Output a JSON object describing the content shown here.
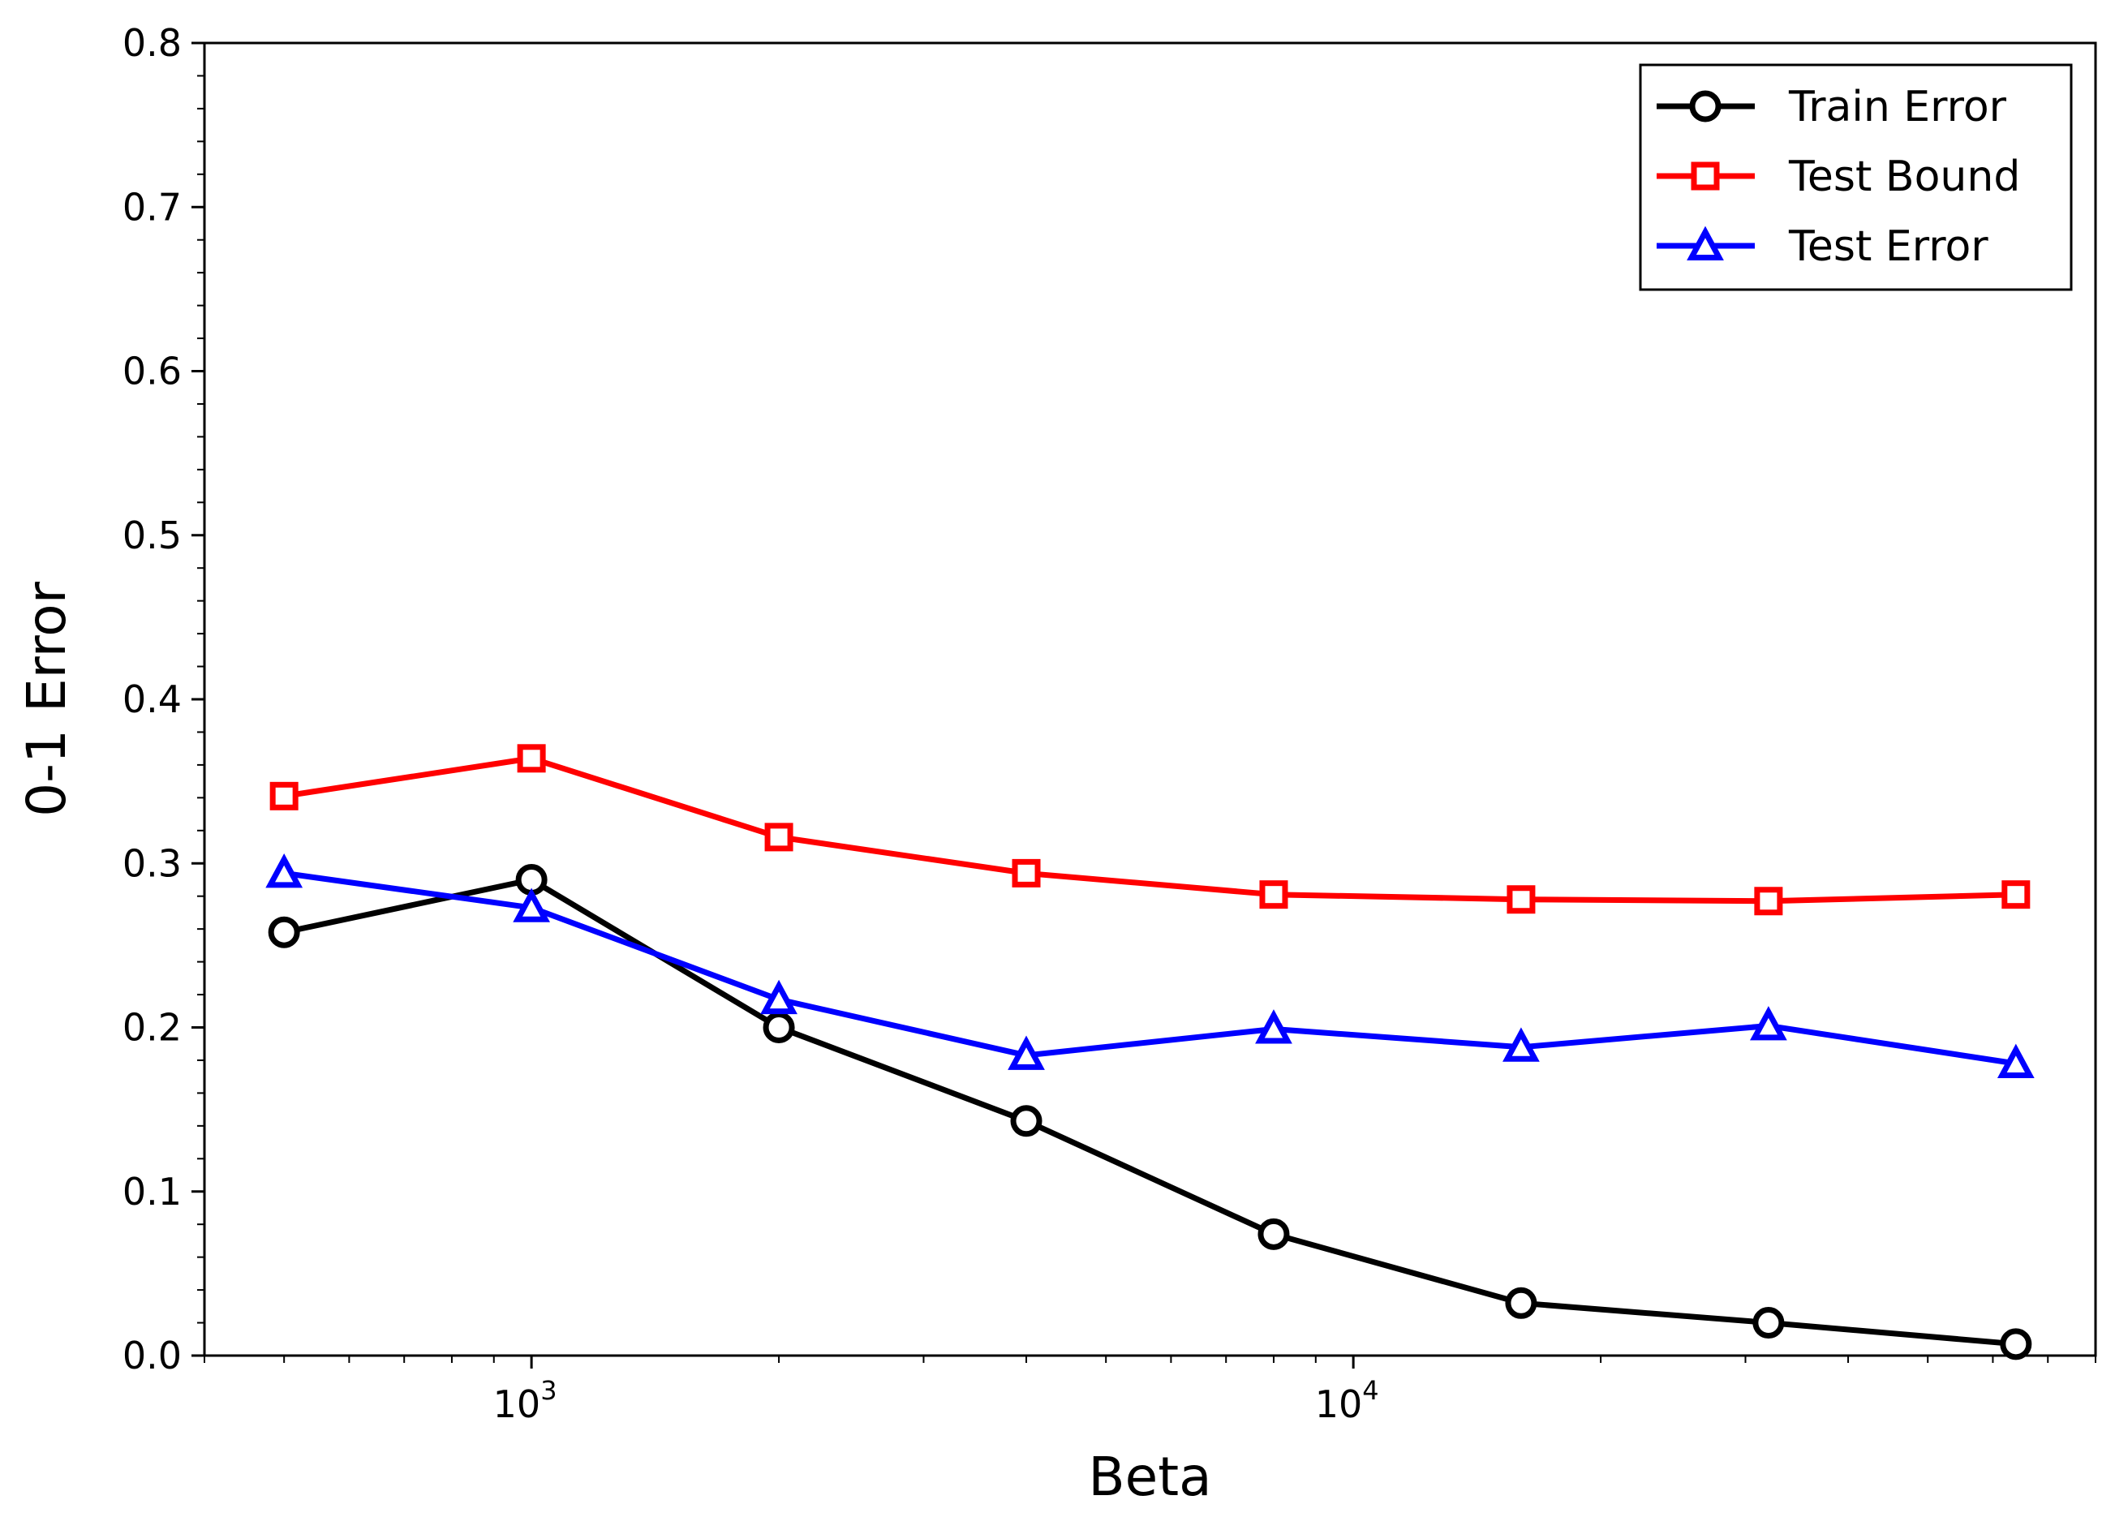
{
  "chart_data": {
    "type": "line",
    "xlabel": "Beta",
    "ylabel": "0-1 Error",
    "xscale": "log",
    "xlim": [
      400,
      80000
    ],
    "ylim": [
      0,
      0.8
    ],
    "yticks": [
      "0.0",
      "0.1",
      "0.2",
      "0.3",
      "0.4",
      "0.5",
      "0.6",
      "0.7",
      "0.8"
    ],
    "xtick_major": [
      {
        "base": "10",
        "exp": "3",
        "value": 1000
      },
      {
        "base": "10",
        "exp": "4",
        "value": 10000
      }
    ],
    "x": [
      500,
      1000,
      2000,
      4000,
      8000,
      16000,
      32000,
      64000
    ],
    "legend_position": "top-right",
    "grid": false,
    "series": [
      {
        "name": "Train Error",
        "color": "#000000",
        "marker": "circle",
        "values": [
          0.258,
          0.29,
          0.2,
          0.143,
          0.074,
          0.032,
          0.02,
          0.007
        ]
      },
      {
        "name": "Test Bound",
        "color": "#ff0000",
        "marker": "square",
        "values": [
          0.341,
          0.364,
          0.316,
          0.294,
          0.281,
          0.278,
          0.277,
          0.281
        ]
      },
      {
        "name": "Test Error",
        "color": "#0000ff",
        "marker": "triangle",
        "values": [
          0.294,
          0.273,
          0.217,
          0.183,
          0.199,
          0.188,
          0.201,
          0.178
        ]
      }
    ]
  }
}
